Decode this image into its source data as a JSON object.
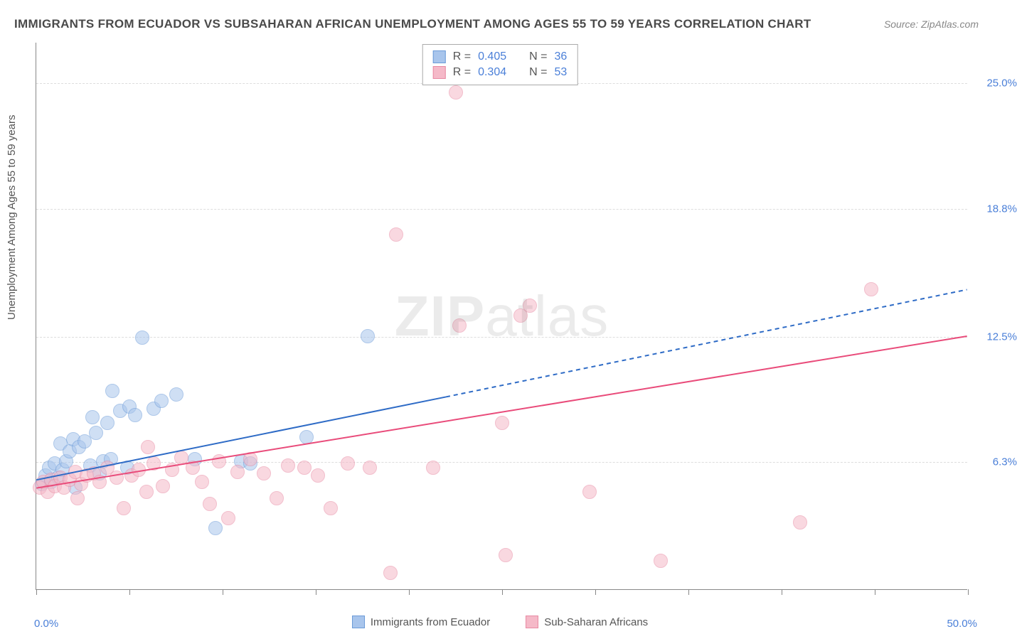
{
  "title": "IMMIGRANTS FROM ECUADOR VS SUBSAHARAN AFRICAN UNEMPLOYMENT AMONG AGES 55 TO 59 YEARS CORRELATION CHART",
  "source_prefix": "Source:",
  "source_name": "ZipAtlas.com",
  "y_axis_label": "Unemployment Among Ages 55 to 59 years",
  "watermark": {
    "part1": "ZIP",
    "part2": "atlas"
  },
  "chart": {
    "type": "scatter",
    "background_color": "#ffffff",
    "grid_color": "#dddddd",
    "axis_color": "#888888",
    "xlim": [
      0,
      50
    ],
    "ylim": [
      0,
      27
    ],
    "x_ticks": [
      0,
      5,
      10,
      15,
      20,
      25,
      30,
      35,
      40,
      45,
      50
    ],
    "x_tick_labels": {
      "0": "0.0%",
      "50": "50.0%"
    },
    "y_grid": [
      {
        "value": 6.3,
        "label": "6.3%"
      },
      {
        "value": 12.5,
        "label": "12.5%"
      },
      {
        "value": 18.8,
        "label": "18.8%"
      },
      {
        "value": 25.0,
        "label": "25.0%"
      }
    ],
    "marker_radius": 10,
    "marker_opacity": 0.55,
    "series": [
      {
        "name": "Immigrants from Ecuador",
        "color_fill": "#a8c5ec",
        "color_stroke": "#6b9bd8",
        "line_color": "#2e6bc6",
        "line_width": 2,
        "r_value": "0.405",
        "n_value": "36",
        "trend": {
          "x1": 0,
          "y1": 5.4,
          "x2_solid": 22,
          "y2_solid": 9.5,
          "x2_dash": 50,
          "y2_dash": 14.8
        },
        "points": [
          [
            0.3,
            5.2
          ],
          [
            0.5,
            5.6
          ],
          [
            0.7,
            6.0
          ],
          [
            0.8,
            5.3
          ],
          [
            1.0,
            6.2
          ],
          [
            1.2,
            5.5
          ],
          [
            1.4,
            5.9
          ],
          [
            1.6,
            6.3
          ],
          [
            1.3,
            7.2
          ],
          [
            1.8,
            6.8
          ],
          [
            2.0,
            7.4
          ],
          [
            2.3,
            7.0
          ],
          [
            2.1,
            5.0
          ],
          [
            2.6,
            7.3
          ],
          [
            2.9,
            6.1
          ],
          [
            3.2,
            7.7
          ],
          [
            3.4,
            5.7
          ],
          [
            3.6,
            6.3
          ],
          [
            3.0,
            8.5
          ],
          [
            3.8,
            8.2
          ],
          [
            4.0,
            6.4
          ],
          [
            4.5,
            8.8
          ],
          [
            4.9,
            6.0
          ],
          [
            5.0,
            9.0
          ],
          [
            5.3,
            8.6
          ],
          [
            4.1,
            9.8
          ],
          [
            5.7,
            12.4
          ],
          [
            6.3,
            8.9
          ],
          [
            6.7,
            9.3
          ],
          [
            7.5,
            9.6
          ],
          [
            8.5,
            6.4
          ],
          [
            9.6,
            3.0
          ],
          [
            11.0,
            6.3
          ],
          [
            11.5,
            6.2
          ],
          [
            14.5,
            7.5
          ],
          [
            17.8,
            12.5
          ]
        ]
      },
      {
        "name": "Sub-Saharan Africans",
        "color_fill": "#f5b9c8",
        "color_stroke": "#e88aa3",
        "line_color": "#e94b7a",
        "line_width": 2,
        "r_value": "0.304",
        "n_value": "53",
        "trend": {
          "x1": 0,
          "y1": 5.0,
          "x2_solid": 50,
          "y2_solid": 12.5,
          "x2_dash": 50,
          "y2_dash": 12.5
        },
        "points": [
          [
            0.2,
            5.0
          ],
          [
            0.4,
            5.3
          ],
          [
            0.6,
            4.8
          ],
          [
            0.8,
            5.4
          ],
          [
            1.0,
            5.1
          ],
          [
            1.3,
            5.5
          ],
          [
            1.5,
            5.0
          ],
          [
            1.8,
            5.4
          ],
          [
            2.1,
            5.8
          ],
          [
            2.4,
            5.2
          ],
          [
            2.7,
            5.6
          ],
          [
            2.2,
            4.5
          ],
          [
            3.1,
            5.7
          ],
          [
            3.4,
            5.3
          ],
          [
            3.8,
            6.0
          ],
          [
            4.3,
            5.5
          ],
          [
            4.7,
            4.0
          ],
          [
            5.1,
            5.6
          ],
          [
            5.5,
            5.9
          ],
          [
            5.9,
            4.8
          ],
          [
            6.3,
            6.2
          ],
          [
            6.8,
            5.1
          ],
          [
            7.3,
            5.9
          ],
          [
            7.8,
            6.5
          ],
          [
            8.4,
            6.0
          ],
          [
            8.9,
            5.3
          ],
          [
            9.3,
            4.2
          ],
          [
            9.8,
            6.3
          ],
          [
            10.3,
            3.5
          ],
          [
            10.8,
            5.8
          ],
          [
            6.0,
            7.0
          ],
          [
            11.5,
            6.4
          ],
          [
            12.2,
            5.7
          ],
          [
            12.9,
            4.5
          ],
          [
            13.5,
            6.1
          ],
          [
            14.4,
            6.0
          ],
          [
            15.1,
            5.6
          ],
          [
            15.8,
            4.0
          ],
          [
            16.7,
            6.2
          ],
          [
            17.9,
            6.0
          ],
          [
            19.3,
            17.5
          ],
          [
            19.0,
            0.8
          ],
          [
            21.3,
            6.0
          ],
          [
            22.7,
            13.0
          ],
          [
            22.5,
            24.5
          ],
          [
            25.0,
            8.2
          ],
          [
            25.2,
            1.7
          ],
          [
            26.0,
            13.5
          ],
          [
            26.5,
            14.0
          ],
          [
            29.7,
            4.8
          ],
          [
            33.5,
            1.4
          ],
          [
            41.0,
            3.3
          ],
          [
            44.8,
            14.8
          ]
        ]
      }
    ]
  },
  "legend_bottom_labels": {
    "series1": "Immigrants from Ecuador",
    "series2": "Sub-Saharan Africans"
  },
  "legend_top": {
    "r_label": "R =",
    "n_label": "N ="
  }
}
